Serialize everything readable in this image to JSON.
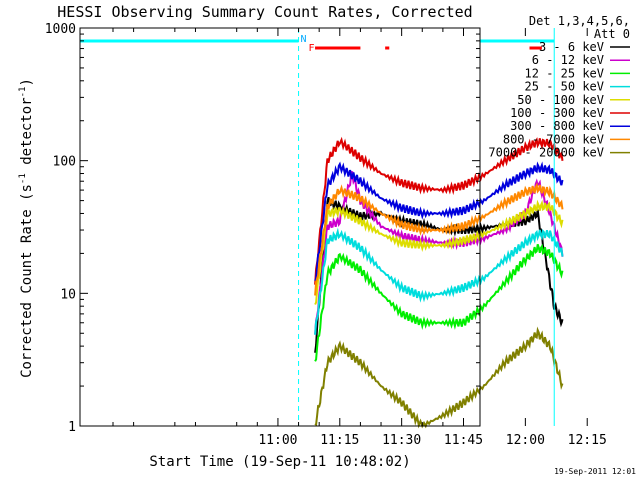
{
  "chart_data": {
    "type": "line",
    "title": "HESSI Observing Summary Count Rates, Corrected",
    "xlabel": "Start Time (19-Sep-11 10:48:02)",
    "ylabel_main": "Corrected Count Rate (s",
    "ylabel_sup1": "-1",
    "ylabel_mid": " detector",
    "ylabel_sup2": "-1",
    "ylabel_end": ")",
    "yscale": "log",
    "ylim": [
      1,
      1000
    ],
    "xlim_minutes": [
      -48,
      49
    ],
    "x_ticks": [
      {
        "value": 0,
        "label": "11:00"
      },
      {
        "value": 15,
        "label": "11:15"
      },
      {
        "value": 30,
        "label": "11:30"
      },
      {
        "value": 45,
        "label": "11:45"
      },
      {
        "value": 60,
        "label": "12:00"
      },
      {
        "value": 75,
        "label": "12:15"
      }
    ],
    "y_ticks": [
      {
        "value": 1,
        "label": "1"
      },
      {
        "value": 10,
        "label": "10"
      },
      {
        "value": 100,
        "label": "100"
      },
      {
        "value": 1000,
        "label": "1000"
      }
    ],
    "legend": {
      "header1": "Det 1,3,4,5,6,",
      "header2": "Att 0",
      "placement": "right"
    },
    "series": [
      {
        "name": "3 - 6 keV",
        "color": "#000000",
        "points": [
          [
            9,
            3.5
          ],
          [
            12,
            50
          ],
          [
            15,
            45
          ],
          [
            20,
            38
          ],
          [
            25,
            40
          ],
          [
            30,
            35
          ],
          [
            35,
            33
          ],
          [
            40,
            30
          ],
          [
            45,
            30
          ],
          [
            50,
            31
          ],
          [
            55,
            33
          ],
          [
            60,
            35
          ],
          [
            63,
            40
          ],
          [
            66,
            12
          ],
          [
            67,
            8
          ],
          [
            69,
            6
          ]
        ]
      },
      {
        "name": "6 - 12 keV",
        "color": "#cc00cc",
        "points": [
          [
            9,
            5
          ],
          [
            12,
            32
          ],
          [
            15,
            35
          ],
          [
            18,
            80
          ],
          [
            20,
            50
          ],
          [
            25,
            32
          ],
          [
            30,
            27
          ],
          [
            35,
            25
          ],
          [
            40,
            24
          ],
          [
            45,
            24
          ],
          [
            50,
            26
          ],
          [
            55,
            30
          ],
          [
            60,
            40
          ],
          [
            63,
            70
          ],
          [
            66,
            40
          ],
          [
            69,
            20
          ]
        ]
      },
      {
        "name": "12 - 25 keV",
        "color": "#00ee00",
        "points": [
          [
            9,
            3
          ],
          [
            12,
            14
          ],
          [
            15,
            19
          ],
          [
            20,
            15
          ],
          [
            25,
            10
          ],
          [
            30,
            7
          ],
          [
            35,
            6
          ],
          [
            40,
            6
          ],
          [
            45,
            6
          ],
          [
            50,
            8
          ],
          [
            55,
            12
          ],
          [
            60,
            18
          ],
          [
            63,
            22
          ],
          [
            66,
            20
          ],
          [
            69,
            14
          ]
        ]
      },
      {
        "name": "25 - 50 keV",
        "color": "#00dddd",
        "points": [
          [
            9,
            5
          ],
          [
            12,
            25
          ],
          [
            15,
            28
          ],
          [
            20,
            22
          ],
          [
            25,
            15
          ],
          [
            30,
            11
          ],
          [
            35,
            9.5
          ],
          [
            40,
            10
          ],
          [
            45,
            11
          ],
          [
            50,
            13
          ],
          [
            55,
            18
          ],
          [
            60,
            24
          ],
          [
            63,
            28
          ],
          [
            66,
            28
          ],
          [
            69,
            20
          ]
        ]
      },
      {
        "name": "50 - 100 keV",
        "color": "#dddd00",
        "points": [
          [
            9,
            8
          ],
          [
            12,
            40
          ],
          [
            15,
            42
          ],
          [
            20,
            35
          ],
          [
            25,
            28
          ],
          [
            30,
            24
          ],
          [
            35,
            23
          ],
          [
            40,
            23
          ],
          [
            45,
            25
          ],
          [
            50,
            28
          ],
          [
            55,
            33
          ],
          [
            60,
            40
          ],
          [
            63,
            45
          ],
          [
            66,
            45
          ],
          [
            69,
            34
          ]
        ]
      },
      {
        "name": "100 - 300 keV",
        "color": "#dd0000",
        "points": [
          [
            9,
            12
          ],
          [
            12,
            100
          ],
          [
            15,
            140
          ],
          [
            20,
            105
          ],
          [
            25,
            80
          ],
          [
            30,
            68
          ],
          [
            35,
            62
          ],
          [
            40,
            60
          ],
          [
            45,
            65
          ],
          [
            50,
            78
          ],
          [
            55,
            100
          ],
          [
            60,
            125
          ],
          [
            63,
            138
          ],
          [
            66,
            135
          ],
          [
            69,
            105
          ]
        ]
      },
      {
        "name": "300 - 800 keV",
        "color": "#0000dd",
        "points": [
          [
            9,
            12
          ],
          [
            12,
            65
          ],
          [
            15,
            90
          ],
          [
            20,
            70
          ],
          [
            25,
            52
          ],
          [
            30,
            44
          ],
          [
            35,
            40
          ],
          [
            40,
            40
          ],
          [
            45,
            42
          ],
          [
            50,
            50
          ],
          [
            55,
            65
          ],
          [
            60,
            80
          ],
          [
            63,
            88
          ],
          [
            66,
            85
          ],
          [
            69,
            68
          ]
        ]
      },
      {
        "name": "800 - 7000 keV",
        "color": "#ff8800",
        "points": [
          [
            9,
            10
          ],
          [
            12,
            45
          ],
          [
            15,
            60
          ],
          [
            20,
            52
          ],
          [
            25,
            40
          ],
          [
            30,
            33
          ],
          [
            35,
            30
          ],
          [
            40,
            30
          ],
          [
            45,
            32
          ],
          [
            50,
            38
          ],
          [
            55,
            48
          ],
          [
            60,
            58
          ],
          [
            63,
            62
          ],
          [
            66,
            58
          ],
          [
            69,
            45
          ]
        ]
      },
      {
        "name": "7000 - 20000 keV",
        "color": "#808000",
        "points": [
          [
            9,
            1
          ],
          [
            12,
            3
          ],
          [
            15,
            4
          ],
          [
            20,
            3
          ],
          [
            25,
            2
          ],
          [
            30,
            1.5
          ],
          [
            35,
            1
          ],
          [
            40,
            1.2
          ],
          [
            45,
            1.5
          ],
          [
            50,
            2
          ],
          [
            55,
            3
          ],
          [
            60,
            4
          ],
          [
            63,
            5
          ],
          [
            66,
            4
          ],
          [
            69,
            2
          ]
        ]
      }
    ],
    "flags": {
      "n_label": "N",
      "f_label": "F",
      "cyan_bars": [
        [
          -48,
          5
        ],
        [
          67,
          88
        ]
      ],
      "red_bars": [
        [
          9,
          20
        ],
        [
          26,
          27
        ],
        [
          61,
          64
        ]
      ]
    },
    "vlines": [
      {
        "x": 5,
        "style": "dashed",
        "color": "#00ffff"
      },
      {
        "x": 67,
        "style": "solid",
        "color": "#00ffff"
      },
      {
        "x": 88,
        "style": "dashed",
        "color": "#00ffff"
      }
    ]
  },
  "footer": {
    "timestamp": "19-Sep-2011 12:01"
  }
}
